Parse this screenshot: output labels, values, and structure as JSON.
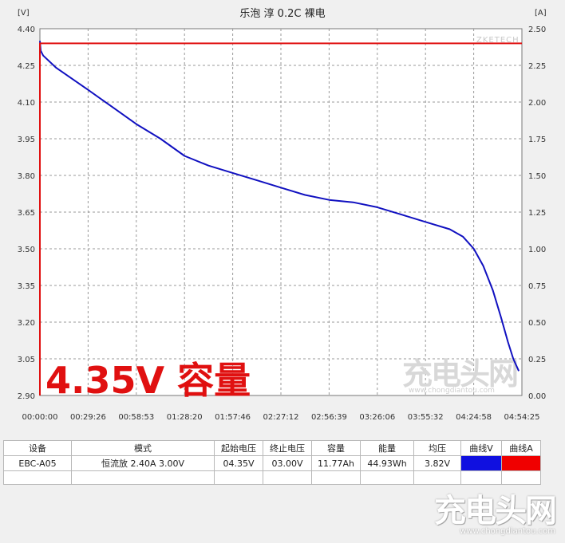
{
  "chart_data": {
    "type": "line",
    "title": "乐泡 淳 0.2C 裸电",
    "left_unit": "[V]",
    "right_unit": "[A]",
    "y_left": {
      "min": 2.9,
      "max": 4.4,
      "ticks": [
        "4.40",
        "4.25",
        "4.10",
        "3.95",
        "3.80",
        "3.65",
        "3.50",
        "3.35",
        "3.20",
        "3.05",
        "2.90"
      ]
    },
    "y_right": {
      "min": 0.0,
      "max": 2.5,
      "ticks": [
        "2.50",
        "2.25",
        "2.00",
        "1.75",
        "1.50",
        "1.25",
        "1.00",
        "0.75",
        "0.50",
        "0.25",
        "0.00"
      ]
    },
    "x_ticks": [
      "00:00:00",
      "00:29:26",
      "00:58:53",
      "01:28:20",
      "01:57:46",
      "02:27:12",
      "02:56:39",
      "03:26:06",
      "03:55:32",
      "04:24:58",
      "04:54:25"
    ],
    "x_range_seconds": [
      0,
      17665
    ],
    "grid": true,
    "series": [
      {
        "axis": "left",
        "color": "#1010c0",
        "points": [
          [
            0,
            4.35
          ],
          [
            30,
            4.31
          ],
          [
            120,
            4.29
          ],
          [
            600,
            4.24
          ],
          [
            1766,
            4.15
          ],
          [
            2650,
            4.08
          ],
          [
            3533,
            4.01
          ],
          [
            4420,
            3.95
          ],
          [
            5300,
            3.88
          ],
          [
            6180,
            3.84
          ],
          [
            7066,
            3.81
          ],
          [
            7950,
            3.78
          ],
          [
            8830,
            3.75
          ],
          [
            9720,
            3.72
          ],
          [
            10600,
            3.7
          ],
          [
            11480,
            3.69
          ],
          [
            12360,
            3.67
          ],
          [
            13250,
            3.64
          ],
          [
            14130,
            3.61
          ],
          [
            15020,
            3.58
          ],
          [
            15500,
            3.55
          ],
          [
            15900,
            3.5
          ],
          [
            16250,
            3.43
          ],
          [
            16600,
            3.33
          ],
          [
            16900,
            3.22
          ],
          [
            17150,
            3.12
          ],
          [
            17350,
            3.05
          ],
          [
            17550,
            3.0
          ]
        ]
      },
      {
        "axis": "right",
        "color": "#e01010",
        "points": [
          [
            0,
            0.0
          ],
          [
            0,
            2.4
          ],
          [
            17665,
            2.4
          ]
        ]
      }
    ],
    "annotation": "4.35V 容量"
  },
  "watermark": {
    "chart": "充电头网",
    "chart_url": "www.chongdiantou.com",
    "corner": "ZKETECH"
  },
  "table": {
    "headers": [
      "设备",
      "模式",
      "起始电压",
      "终止电压",
      "容量",
      "能量",
      "均压",
      "曲线V",
      "曲线A"
    ],
    "row": [
      "EBC-A05",
      "恒流放  2.40A  3.00V",
      "04.35V",
      "03.00V",
      "11.77Ah",
      "44.93Wh",
      "3.82V"
    ],
    "curve_v_color": "#1010e0",
    "curve_a_color": "#f00000"
  },
  "footer_logo": {
    "big": "充电头网",
    "small": "www.chongdiantou.com"
  }
}
